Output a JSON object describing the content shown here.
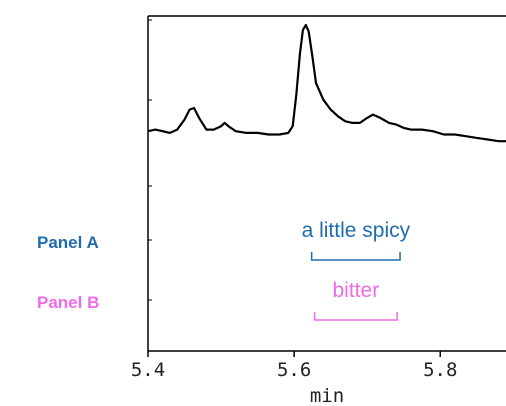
{
  "chart_data": {
    "type": "line",
    "xlabel": "min",
    "xlim": [
      5.4,
      5.89
    ],
    "xticks": [
      {
        "value": 5.4,
        "label": "5.4"
      },
      {
        "value": 5.6,
        "label": "5.6"
      },
      {
        "value": 5.8,
        "label": "5.8"
      }
    ],
    "series": [
      {
        "color": "#000000",
        "points": [
          [
            5.4,
            0.33
          ],
          [
            5.41,
            0.34
          ],
          [
            5.42,
            0.33
          ],
          [
            5.43,
            0.32
          ],
          [
            5.44,
            0.34
          ],
          [
            5.45,
            0.4
          ],
          [
            5.457,
            0.46
          ],
          [
            5.463,
            0.47
          ],
          [
            5.47,
            0.41
          ],
          [
            5.48,
            0.34
          ],
          [
            5.49,
            0.34
          ],
          [
            5.5,
            0.36
          ],
          [
            5.505,
            0.38
          ],
          [
            5.51,
            0.36
          ],
          [
            5.52,
            0.33
          ],
          [
            5.535,
            0.32
          ],
          [
            5.55,
            0.32
          ],
          [
            5.565,
            0.31
          ],
          [
            5.58,
            0.31
          ],
          [
            5.592,
            0.32
          ],
          [
            5.598,
            0.36
          ],
          [
            5.603,
            0.55
          ],
          [
            5.608,
            0.8
          ],
          [
            5.612,
            0.94
          ],
          [
            5.616,
            0.97
          ],
          [
            5.62,
            0.93
          ],
          [
            5.625,
            0.78
          ],
          [
            5.63,
            0.62
          ],
          [
            5.64,
            0.52
          ],
          [
            5.65,
            0.46
          ],
          [
            5.66,
            0.42
          ],
          [
            5.67,
            0.39
          ],
          [
            5.68,
            0.38
          ],
          [
            5.69,
            0.38
          ],
          [
            5.7,
            0.41
          ],
          [
            5.708,
            0.43
          ],
          [
            5.718,
            0.41
          ],
          [
            5.73,
            0.38
          ],
          [
            5.74,
            0.37
          ],
          [
            5.75,
            0.35
          ],
          [
            5.76,
            0.34
          ],
          [
            5.775,
            0.34
          ],
          [
            5.79,
            0.33
          ],
          [
            5.805,
            0.31
          ],
          [
            5.82,
            0.31
          ],
          [
            5.835,
            0.3
          ],
          [
            5.85,
            0.29
          ],
          [
            5.865,
            0.28
          ],
          [
            5.88,
            0.27
          ],
          [
            5.89,
            0.27
          ]
        ]
      }
    ],
    "panels": [
      {
        "label": "Panel A",
        "color": "#1f6db0",
        "annotation": "a little spicy",
        "range": [
          5.624,
          5.745
        ]
      },
      {
        "label": "Panel B",
        "color": "#f06be6",
        "annotation": "bitter",
        "range": [
          5.628,
          5.741
        ]
      }
    ],
    "grid": false
  }
}
